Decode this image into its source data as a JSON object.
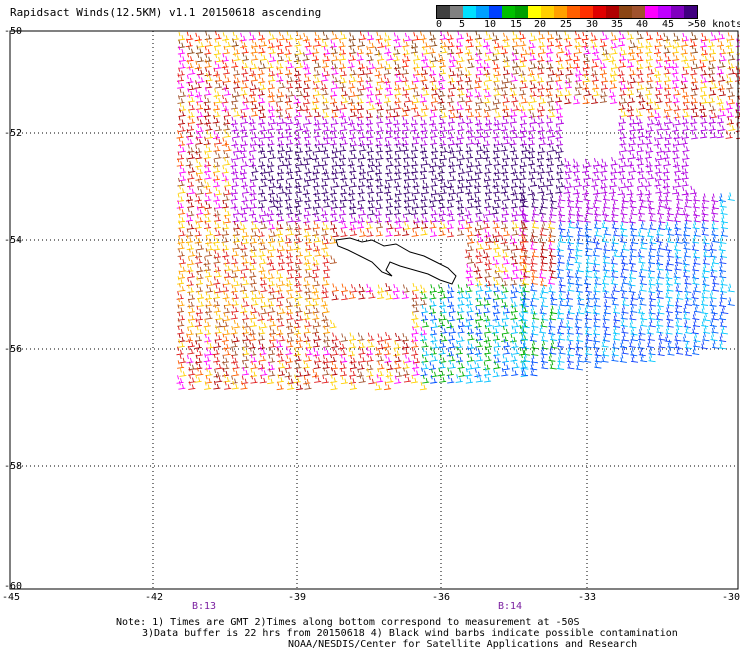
{
  "title": "Rapidsact Winds(12.5KM) v1.1 20150618 ascending",
  "legend": {
    "labels": [
      "0",
      "5",
      "10",
      "15",
      "20",
      "25",
      "30",
      "35",
      "40",
      "45",
      ">50 knots"
    ],
    "colors": [
      "#404040",
      "#808080",
      "#00e0ff",
      "#00a0ff",
      "#0040ff",
      "#00c000",
      "#00a000",
      "#ffff00",
      "#ffd000",
      "#ffa000",
      "#ff6000",
      "#ff3000",
      "#e00000",
      "#b00000",
      "#8b4513",
      "#a0522d",
      "#ff00ff",
      "#c000ff",
      "#8000c0",
      "#400080"
    ]
  },
  "axes": {
    "lat_labels": [
      "-50",
      "-52",
      "-54",
      "-56",
      "-58",
      "-60"
    ],
    "lon_labels": [
      "-45",
      "-42",
      "-39",
      "-36",
      "-33",
      "-30"
    ]
  },
  "orbits": [
    "B:13",
    "B:14"
  ],
  "note": {
    "line1": "Note: 1) Times are GMT 2)Times along bottom correspond to measurement at -50S",
    "line2": "3)Data buffer is 22 hrs from 20150618 4) Black wind barbs indicate possible contamination",
    "line3": "NOAA/NESDIS/Center for Satellite Applications and Research"
  }
}
